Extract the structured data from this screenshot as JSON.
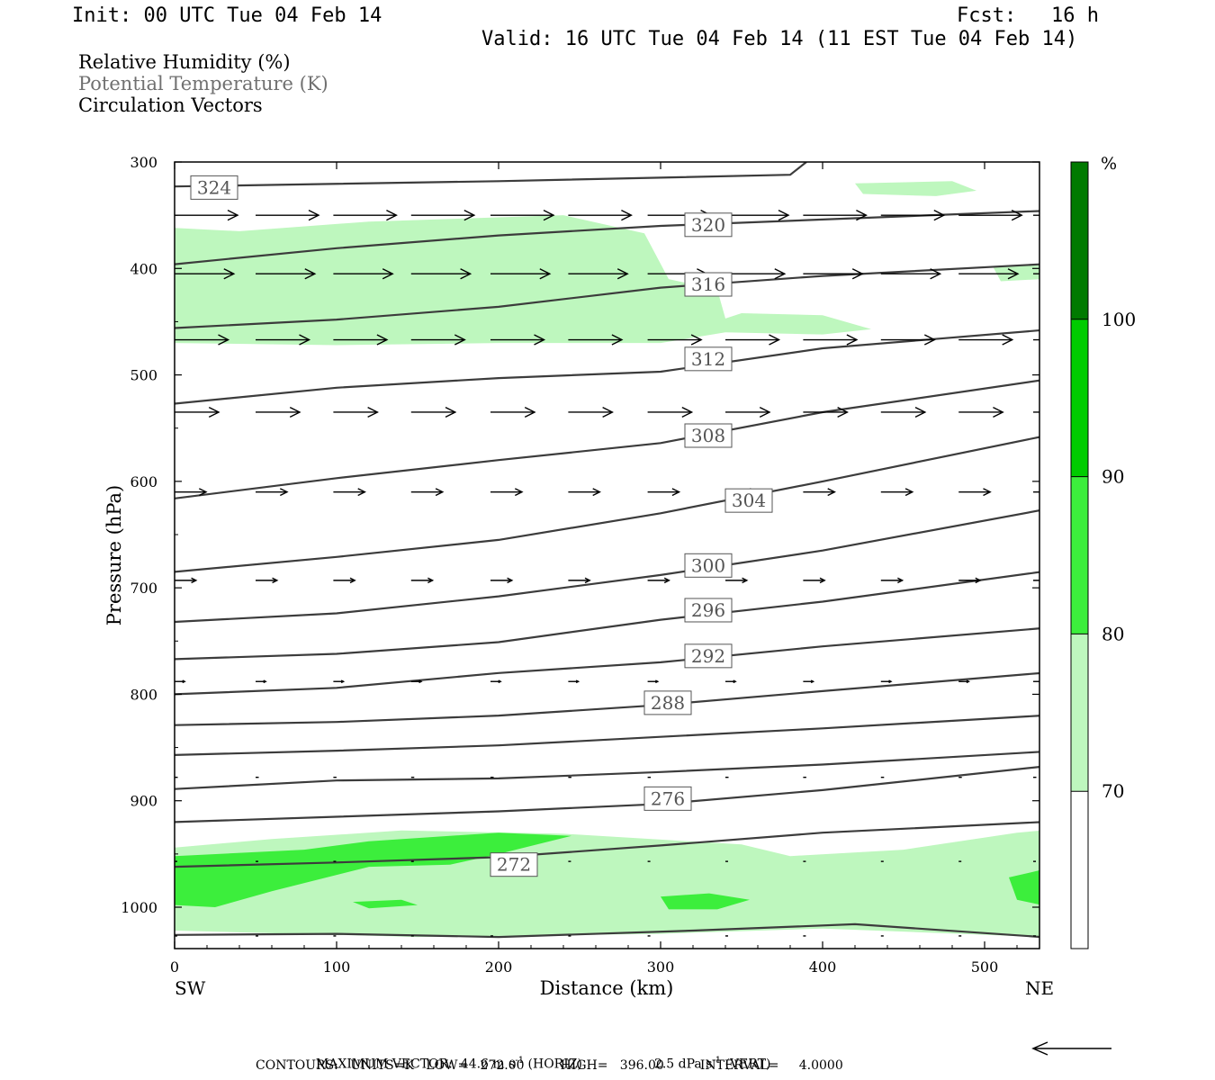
{
  "header": {
    "init": "Init: 00 UTC Tue 04 Feb 14",
    "fcst_label": "Fcst:",
    "fcst_value": "16 h",
    "valid": "Valid: 16 UTC Tue 04 Feb 14 (11 EST Tue 04 Feb 14)"
  },
  "legend": {
    "line1": "Relative Humidity (%)",
    "line2": "Potential Temperature (K)",
    "line3": "Circulation Vectors"
  },
  "footer": {
    "line1_a": "MAXIMUM VECTOR:  44.6 m s",
    "line1_a_sup": "-1",
    "line1_b": " (HORIZ)",
    "line1_c": "2.5 dPa s",
    "line1_c_sup": "-1",
    "line1_d": " (VERT)",
    "line2": "CONTOURS:   UNITS=K   LOW=   272.00         HIGH=   396.00         INTERVAL=     4.0000"
  },
  "colors": {
    "rh_70": "#bef7be",
    "rh_80": "#3cee3c",
    "rh_90": "#00cc00",
    "rh_100": "#007a00",
    "theta_line": "#3c3c3c"
  },
  "chart_data": {
    "type": "cross-section",
    "xlabel": "Distance (km)",
    "ylabel": "Pressure (hPa)",
    "xlim": [
      0,
      535
    ],
    "ylim": [
      1030,
      300
    ],
    "x_ticks": [
      0,
      100,
      200,
      300,
      400,
      500
    ],
    "y_ticks": [
      300,
      400,
      500,
      600,
      700,
      800,
      900,
      1000
    ],
    "x_endpoints": [
      "SW",
      "NE"
    ],
    "colorbar": {
      "unit": "%",
      "levels": [
        70,
        80,
        90,
        100
      ]
    },
    "theta_contours": [
      {
        "label": "324",
        "label_at": [
          10,
          324
        ],
        "points": [
          [
            0,
            323
          ],
          [
            200,
            318
          ],
          [
            380,
            312
          ],
          [
            390,
            300
          ]
        ]
      },
      {
        "label": "320",
        "label_at": [
          315,
          359
        ],
        "points": [
          [
            0,
            396
          ],
          [
            100,
            381
          ],
          [
            200,
            369
          ],
          [
            300,
            360
          ],
          [
            400,
            354
          ],
          [
            535,
            346
          ]
        ]
      },
      {
        "label": "316",
        "label_at": [
          315,
          415
        ],
        "points": [
          [
            0,
            456
          ],
          [
            100,
            448
          ],
          [
            200,
            436
          ],
          [
            300,
            418
          ],
          [
            400,
            407
          ],
          [
            535,
            396
          ]
        ]
      },
      {
        "label": "312",
        "label_at": [
          315,
          485
        ],
        "points": [
          [
            0,
            527
          ],
          [
            100,
            512
          ],
          [
            200,
            503
          ],
          [
            300,
            497
          ],
          [
            400,
            475
          ],
          [
            535,
            458
          ]
        ]
      },
      {
        "label": "308",
        "label_at": [
          315,
          557
        ],
        "points": [
          [
            0,
            616
          ],
          [
            100,
            597
          ],
          [
            200,
            580
          ],
          [
            300,
            564
          ],
          [
            400,
            535
          ],
          [
            535,
            505
          ]
        ]
      },
      {
        "label": "304",
        "label_at": [
          340,
          618
        ],
        "points": [
          [
            0,
            685
          ],
          [
            100,
            671
          ],
          [
            200,
            655
          ],
          [
            300,
            630
          ],
          [
            400,
            600
          ],
          [
            535,
            558
          ]
        ]
      },
      {
        "label": "300",
        "label_at": [
          315,
          679
        ],
        "points": [
          [
            0,
            732
          ],
          [
            100,
            724
          ],
          [
            200,
            708
          ],
          [
            300,
            688
          ],
          [
            400,
            665
          ],
          [
            535,
            627
          ]
        ]
      },
      {
        "label": "296",
        "label_at": [
          315,
          721
        ],
        "points": [
          [
            0,
            767
          ],
          [
            100,
            762
          ],
          [
            200,
            751
          ],
          [
            300,
            730
          ],
          [
            400,
            713
          ],
          [
            535,
            685
          ]
        ]
      },
      {
        "label": "292",
        "label_at": [
          315,
          764
        ],
        "points": [
          [
            0,
            800
          ],
          [
            100,
            794
          ],
          [
            200,
            780
          ],
          [
            300,
            770
          ],
          [
            400,
            755
          ],
          [
            535,
            738
          ]
        ]
      },
      {
        "label": "288",
        "label_at": [
          290,
          808
        ],
        "points": [
          [
            0,
            829
          ],
          [
            100,
            826
          ],
          [
            200,
            820
          ],
          [
            300,
            810
          ],
          [
            400,
            797
          ],
          [
            535,
            780
          ]
        ]
      },
      {
        "label": "",
        "label_at": null,
        "points": [
          [
            0,
            857
          ],
          [
            100,
            853
          ],
          [
            200,
            848
          ],
          [
            300,
            840
          ],
          [
            400,
            832
          ],
          [
            535,
            820
          ]
        ]
      },
      {
        "label": "276",
        "label_at": [
          290,
          898
        ],
        "points": [
          [
            0,
            889
          ],
          [
            100,
            881
          ],
          [
            200,
            879
          ],
          [
            300,
            873
          ],
          [
            400,
            866
          ],
          [
            535,
            854
          ]
        ]
      },
      {
        "label": "",
        "label_at": null,
        "points": [
          [
            0,
            920
          ],
          [
            100,
            915
          ],
          [
            200,
            910
          ],
          [
            300,
            903
          ],
          [
            400,
            890
          ],
          [
            535,
            868
          ]
        ]
      },
      {
        "label": "272",
        "label_at": [
          195,
          960
        ],
        "points": [
          [
            0,
            962
          ],
          [
            100,
            958
          ],
          [
            200,
            953
          ],
          [
            300,
            942
          ],
          [
            400,
            930
          ],
          [
            535,
            920
          ]
        ]
      },
      {
        "label": "",
        "label_at": null,
        "points": [
          [
            0,
            1026
          ],
          [
            100,
            1025
          ],
          [
            200,
            1028
          ],
          [
            320,
            1022
          ],
          [
            420,
            1016
          ],
          [
            535,
            1028
          ]
        ]
      }
    ],
    "rh_regions": [
      {
        "level": 70,
        "points": [
          [
            0,
            362
          ],
          [
            40,
            365
          ],
          [
            120,
            356
          ],
          [
            240,
            350
          ],
          [
            290,
            367
          ],
          [
            305,
            410
          ],
          [
            335,
            420
          ],
          [
            340,
            447
          ],
          [
            350,
            442
          ],
          [
            400,
            444
          ],
          [
            430,
            457
          ],
          [
            400,
            462
          ],
          [
            340,
            460
          ],
          [
            300,
            470
          ],
          [
            200,
            470
          ],
          [
            100,
            472
          ],
          [
            0,
            470
          ]
        ]
      },
      {
        "level": 70,
        "points": [
          [
            420,
            320
          ],
          [
            480,
            318
          ],
          [
            495,
            327
          ],
          [
            470,
            332
          ],
          [
            425,
            330
          ]
        ]
      },
      {
        "level": 70,
        "points": [
          [
            505,
            398
          ],
          [
            535,
            396
          ],
          [
            535,
            410
          ],
          [
            510,
            412
          ]
        ]
      },
      {
        "level": 70,
        "points": [
          [
            0,
            944
          ],
          [
            60,
            936
          ],
          [
            140,
            928
          ],
          [
            240,
            931
          ],
          [
            350,
            941
          ],
          [
            380,
            952
          ],
          [
            450,
            946
          ],
          [
            520,
            930
          ],
          [
            535,
            928
          ],
          [
            535,
            1028
          ],
          [
            400,
            1020
          ],
          [
            300,
            1025
          ],
          [
            150,
            1028
          ],
          [
            0,
            1022
          ]
        ]
      },
      {
        "level": 80,
        "points": [
          [
            0,
            952
          ],
          [
            80,
            946
          ],
          [
            120,
            938
          ],
          [
            200,
            930
          ],
          [
            245,
            933
          ],
          [
            200,
            950
          ],
          [
            170,
            960
          ],
          [
            120,
            962
          ],
          [
            60,
            985
          ],
          [
            25,
            1000
          ],
          [
            0,
            998
          ]
        ]
      },
      {
        "level": 80,
        "points": [
          [
            110,
            995
          ],
          [
            140,
            993
          ],
          [
            150,
            998
          ],
          [
            120,
            1001
          ]
        ]
      },
      {
        "level": 80,
        "points": [
          [
            300,
            990
          ],
          [
            330,
            987
          ],
          [
            355,
            993
          ],
          [
            335,
            1002
          ],
          [
            305,
            1002
          ]
        ]
      },
      {
        "level": 80,
        "points": [
          [
            515,
            972
          ],
          [
            535,
            965
          ],
          [
            535,
            998
          ],
          [
            520,
            993
          ]
        ]
      }
    ],
    "vector_rows": [
      {
        "p": 350,
        "u": 1.0
      },
      {
        "p": 405,
        "u": 0.94
      },
      {
        "p": 467,
        "u": 0.85
      },
      {
        "p": 535,
        "u": 0.7
      },
      {
        "p": 610,
        "u": 0.5
      },
      {
        "p": 693,
        "u": 0.34
      },
      {
        "p": 788,
        "u": 0.16
      },
      {
        "p": 878,
        "u": 0.05
      },
      {
        "p": 957,
        "u": 0.02
      },
      {
        "p": 1027,
        "u": 0.01
      }
    ],
    "vector_x": [
      0,
      50,
      98,
      146,
      195,
      243,
      292,
      340,
      388,
      436,
      484,
      530
    ],
    "max_vector": {
      "horiz": 44.6,
      "vert": 2.5
    }
  }
}
